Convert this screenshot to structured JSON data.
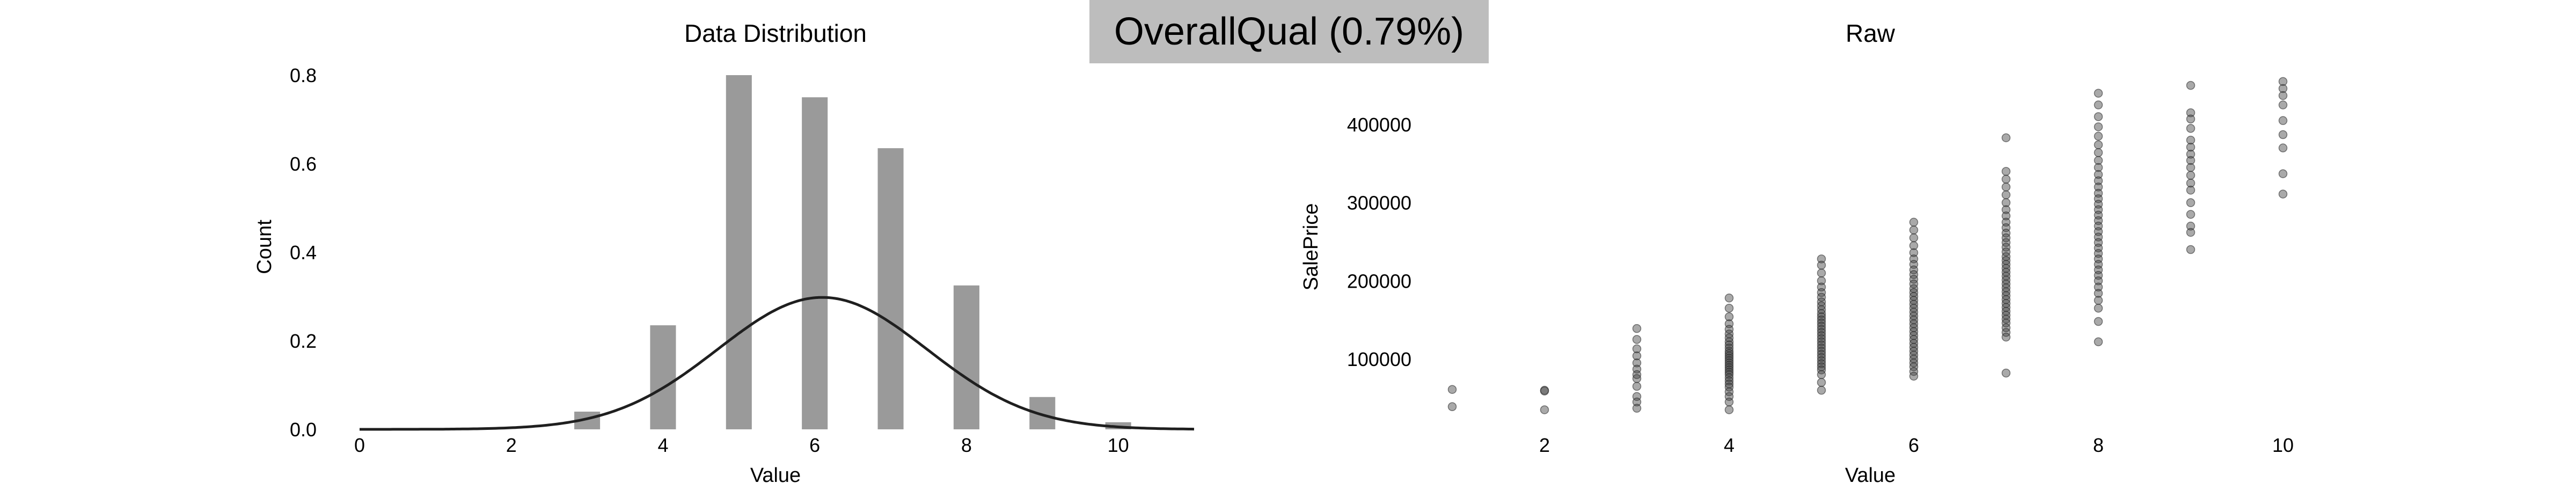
{
  "suptitle": "OverallQual (0.79%)",
  "colors": {
    "bars": "#9a9a9a",
    "kde": "#1f1f1f",
    "scatter": "#404040",
    "suptitle_box": "#bdbdbd"
  },
  "chart_data": [
    {
      "type": "bar",
      "title": "Data Distribution",
      "xlabel": "Value",
      "ylabel": "Count",
      "xlim": [
        0,
        11
      ],
      "ylim": [
        0,
        0.8
      ],
      "xticks": [
        0,
        2,
        4,
        6,
        8,
        10
      ],
      "yticks": [
        0.0,
        0.2,
        0.4,
        0.6,
        0.8
      ],
      "ytick_labels": [
        "0.0",
        "0.2",
        "0.4",
        "0.6",
        "0.8"
      ],
      "grid": false,
      "bars": [
        {
          "x": 3,
          "value": 0.04
        },
        {
          "x": 4,
          "value": 0.235
        },
        {
          "x": 5,
          "value": 0.8
        },
        {
          "x": 6,
          "value": 0.75
        },
        {
          "x": 7,
          "value": 0.635
        },
        {
          "x": 8,
          "value": 0.325
        },
        {
          "x": 9,
          "value": 0.073
        },
        {
          "x": 10,
          "value": 0.016
        }
      ],
      "kde": {
        "mean": 6.1,
        "std": 1.38,
        "peak": 0.298
      }
    },
    {
      "type": "scatter",
      "title": "Raw",
      "xlabel": "Value",
      "ylabel": "SalePrice",
      "xlim": [
        0.5,
        10.5
      ],
      "ylim": [
        10000,
        470000
      ],
      "xticks": [
        2,
        4,
        6,
        8,
        10
      ],
      "yticks": [
        100000,
        200000,
        300000,
        400000
      ],
      "ytick_labels": [
        "100000",
        "200000",
        "300000",
        "400000"
      ],
      "grid": false,
      "points": [
        [
          1,
          61000
        ],
        [
          1,
          39000
        ],
        [
          2,
          60000
        ],
        [
          2,
          59000
        ],
        [
          2,
          35000
        ],
        [
          3,
          139000
        ],
        [
          3,
          125000
        ],
        [
          3,
          113000
        ],
        [
          3,
          104000
        ],
        [
          3,
          95000
        ],
        [
          3,
          87000
        ],
        [
          3,
          80000
        ],
        [
          3,
          75000
        ],
        [
          3,
          65000
        ],
        [
          3,
          52000
        ],
        [
          3,
          45000
        ],
        [
          3,
          37000
        ],
        [
          4,
          178000
        ],
        [
          4,
          165000
        ],
        [
          4,
          154000
        ],
        [
          4,
          145000
        ],
        [
          4,
          138000
        ],
        [
          4,
          132000
        ],
        [
          4,
          127000
        ],
        [
          4,
          122000
        ],
        [
          4,
          118000
        ],
        [
          4,
          114000
        ],
        [
          4,
          110000
        ],
        [
          4,
          107000
        ],
        [
          4,
          104000
        ],
        [
          4,
          101000
        ],
        [
          4,
          98000
        ],
        [
          4,
          95000
        ],
        [
          4,
          92000
        ],
        [
          4,
          89000
        ],
        [
          4,
          86000
        ],
        [
          4,
          83000
        ],
        [
          4,
          80000
        ],
        [
          4,
          76000
        ],
        [
          4,
          72000
        ],
        [
          4,
          68000
        ],
        [
          4,
          64000
        ],
        [
          4,
          58000
        ],
        [
          4,
          52000
        ],
        [
          4,
          45000
        ],
        [
          4,
          35000
        ],
        [
          5,
          228000
        ],
        [
          5,
          220000
        ],
        [
          5,
          210000
        ],
        [
          5,
          200000
        ],
        [
          5,
          192000
        ],
        [
          5,
          185000
        ],
        [
          5,
          179000
        ],
        [
          5,
          173000
        ],
        [
          5,
          168000
        ],
        [
          5,
          163000
        ],
        [
          5,
          158000
        ],
        [
          5,
          154000
        ],
        [
          5,
          150000
        ],
        [
          5,
          146000
        ],
        [
          5,
          142000
        ],
        [
          5,
          138000
        ],
        [
          5,
          134000
        ],
        [
          5,
          130000
        ],
        [
          5,
          126000
        ],
        [
          5,
          122000
        ],
        [
          5,
          118000
        ],
        [
          5,
          114000
        ],
        [
          5,
          110000
        ],
        [
          5,
          106000
        ],
        [
          5,
          102000
        ],
        [
          5,
          98000
        ],
        [
          5,
          94000
        ],
        [
          5,
          90000
        ],
        [
          5,
          86000
        ],
        [
          5,
          80000
        ],
        [
          5,
          70000
        ],
        [
          5,
          60000
        ],
        [
          6,
          275000
        ],
        [
          6,
          265000
        ],
        [
          6,
          255000
        ],
        [
          6,
          245000
        ],
        [
          6,
          236000
        ],
        [
          6,
          228000
        ],
        [
          6,
          221000
        ],
        [
          6,
          214000
        ],
        [
          6,
          208000
        ],
        [
          6,
          202000
        ],
        [
          6,
          196000
        ],
        [
          6,
          190000
        ],
        [
          6,
          185000
        ],
        [
          6,
          180000
        ],
        [
          6,
          175000
        ],
        [
          6,
          170000
        ],
        [
          6,
          165000
        ],
        [
          6,
          160000
        ],
        [
          6,
          155000
        ],
        [
          6,
          150000
        ],
        [
          6,
          145000
        ],
        [
          6,
          140000
        ],
        [
          6,
          135000
        ],
        [
          6,
          130000
        ],
        [
          6,
          125000
        ],
        [
          6,
          120000
        ],
        [
          6,
          115000
        ],
        [
          6,
          110000
        ],
        [
          6,
          105000
        ],
        [
          6,
          100000
        ],
        [
          6,
          95000
        ],
        [
          6,
          90000
        ],
        [
          6,
          84000
        ],
        [
          6,
          78000
        ],
        [
          7,
          383000
        ],
        [
          7,
          340000
        ],
        [
          7,
          330000
        ],
        [
          7,
          320000
        ],
        [
          7,
          310000
        ],
        [
          7,
          300000
        ],
        [
          7,
          291000
        ],
        [
          7,
          283000
        ],
        [
          7,
          275000
        ],
        [
          7,
          268000
        ],
        [
          7,
          261000
        ],
        [
          7,
          255000
        ],
        [
          7,
          249000
        ],
        [
          7,
          243000
        ],
        [
          7,
          237000
        ],
        [
          7,
          231000
        ],
        [
          7,
          226000
        ],
        [
          7,
          221000
        ],
        [
          7,
          216000
        ],
        [
          7,
          211000
        ],
        [
          7,
          206000
        ],
        [
          7,
          201000
        ],
        [
          7,
          196000
        ],
        [
          7,
          191000
        ],
        [
          7,
          186000
        ],
        [
          7,
          181000
        ],
        [
          7,
          176000
        ],
        [
          7,
          171000
        ],
        [
          7,
          166000
        ],
        [
          7,
          161000
        ],
        [
          7,
          156000
        ],
        [
          7,
          151000
        ],
        [
          7,
          146000
        ],
        [
          7,
          140000
        ],
        [
          7,
          134000
        ],
        [
          7,
          128000
        ],
        [
          7,
          82000
        ],
        [
          8,
          440000
        ],
        [
          8,
          425000
        ],
        [
          8,
          410000
        ],
        [
          8,
          397000
        ],
        [
          8,
          385000
        ],
        [
          8,
          374000
        ],
        [
          8,
          364000
        ],
        [
          8,
          354000
        ],
        [
          8,
          345000
        ],
        [
          8,
          336000
        ],
        [
          8,
          328000
        ],
        [
          8,
          320000
        ],
        [
          8,
          312000
        ],
        [
          8,
          305000
        ],
        [
          8,
          298000
        ],
        [
          8,
          291000
        ],
        [
          8,
          284000
        ],
        [
          8,
          277000
        ],
        [
          8,
          270000
        ],
        [
          8,
          263000
        ],
        [
          8,
          256000
        ],
        [
          8,
          249000
        ],
        [
          8,
          242000
        ],
        [
          8,
          235000
        ],
        [
          8,
          228000
        ],
        [
          8,
          221000
        ],
        [
          8,
          214000
        ],
        [
          8,
          207000
        ],
        [
          8,
          200000
        ],
        [
          8,
          192000
        ],
        [
          8,
          184000
        ],
        [
          8,
          175000
        ],
        [
          8,
          165000
        ],
        [
          8,
          148000
        ],
        [
          8,
          122000
        ],
        [
          9,
          450000
        ],
        [
          9,
          415000
        ],
        [
          9,
          407000
        ],
        [
          9,
          395000
        ],
        [
          9,
          380000
        ],
        [
          9,
          371000
        ],
        [
          9,
          362000
        ],
        [
          9,
          354000
        ],
        [
          9,
          345000
        ],
        [
          9,
          335000
        ],
        [
          9,
          325000
        ],
        [
          9,
          316000
        ],
        [
          9,
          300000
        ],
        [
          9,
          285000
        ],
        [
          9,
          270000
        ],
        [
          9,
          262000
        ],
        [
          9,
          240000
        ],
        [
          10,
          455000
        ],
        [
          10,
          446000
        ],
        [
          10,
          437000
        ],
        [
          10,
          425000
        ],
        [
          10,
          405000
        ],
        [
          10,
          387000
        ],
        [
          10,
          370000
        ],
        [
          10,
          337000
        ],
        [
          10,
          311000
        ]
      ]
    }
  ]
}
